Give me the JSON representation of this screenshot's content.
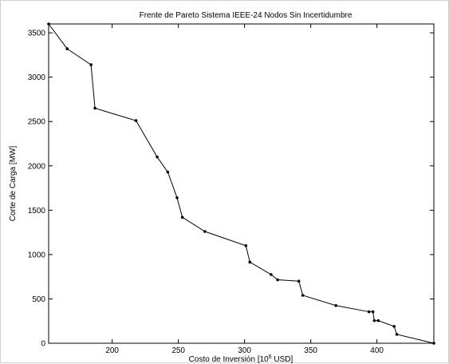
{
  "chart_data": {
    "type": "line",
    "title": "Frente de Pareto Sistema IEEE-24 Nodos Sin Incertidumbre",
    "xlabel": {
      "prefix": "Costo de Inversión [10",
      "superscript": "6",
      "suffix": " USD]"
    },
    "ylabel": "Corte de Carga [MW]",
    "xlim": [
      152,
      443
    ],
    "ylim": [
      0,
      3600
    ],
    "xticks": [
      200,
      250,
      300,
      350,
      400
    ],
    "yticks": [
      0,
      500,
      1000,
      1500,
      2000,
      2500,
      3000,
      3500
    ],
    "grid": false,
    "series": [
      {
        "line_color": "#000000",
        "marker": "dot",
        "points": [
          [
            152,
            3600
          ],
          [
            166,
            3320
          ],
          [
            184,
            3140
          ],
          [
            187,
            2650
          ],
          [
            218,
            2510
          ],
          [
            234,
            2100
          ],
          [
            242,
            1930
          ],
          [
            249,
            1640
          ],
          [
            253,
            1420
          ],
          [
            270,
            1260
          ],
          [
            301,
            1100
          ],
          [
            304,
            915
          ],
          [
            320,
            775
          ],
          [
            325,
            715
          ],
          [
            341,
            700
          ],
          [
            344,
            540
          ],
          [
            369,
            425
          ],
          [
            394,
            355
          ],
          [
            397,
            355
          ],
          [
            398,
            255
          ],
          [
            401,
            255
          ],
          [
            413,
            190
          ],
          [
            415,
            100
          ],
          [
            443,
            0
          ]
        ]
      }
    ]
  }
}
